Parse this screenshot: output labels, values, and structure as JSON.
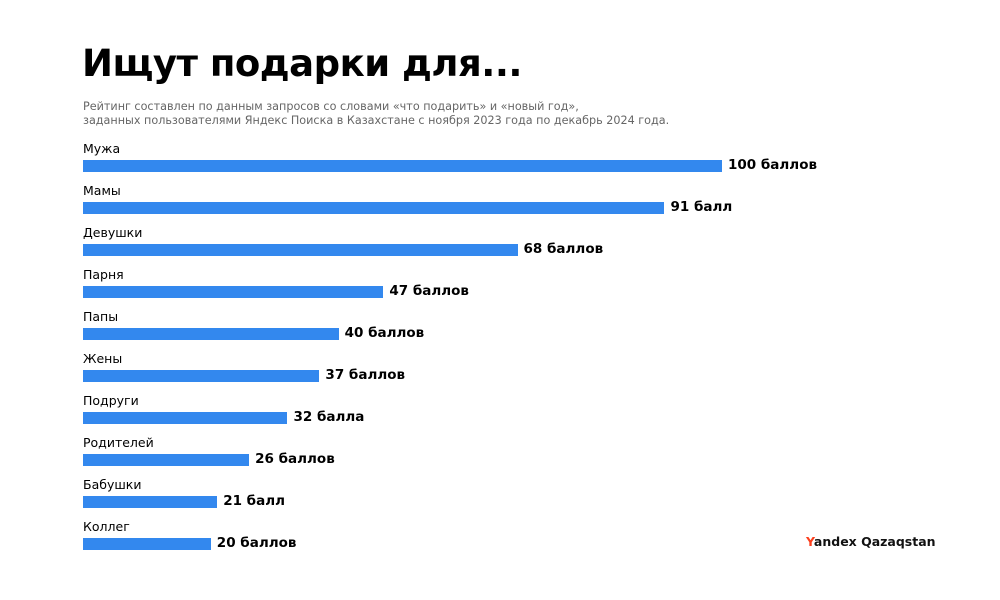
{
  "chart_data": {
    "type": "bar",
    "orientation": "horizontal",
    "title": "Ищут подарки для...",
    "subtitle": [
      "Рейтинг составлен по данным запросов со словами «что подарить» и «новый год»,",
      "заданных пользователями Яндекс Поиска в Казахстане с ноября 2023 года по декабрь 2024 года."
    ],
    "categories": [
      "Мужа",
      "Мамы",
      "Девушки",
      "Парня",
      "Папы",
      "Жены",
      "Подруги",
      "Родителей",
      "Бабушки",
      "Коллег"
    ],
    "values": [
      100,
      91,
      68,
      47,
      40,
      37,
      32,
      26,
      21,
      20
    ],
    "value_labels": [
      "100 баллов",
      "91 балл",
      "68 баллов",
      "47 баллов",
      "40 баллов",
      "37 баллов",
      "32 балла",
      "26 баллов",
      "21 балл",
      "20 баллов"
    ],
    "xlim": [
      0,
      100
    ],
    "grid": false,
    "bar_color": "#3388ee"
  },
  "brand": {
    "logo_first": "Y",
    "logo_rest": "andex Qazaqstan",
    "accent": "#fc3f1d"
  }
}
